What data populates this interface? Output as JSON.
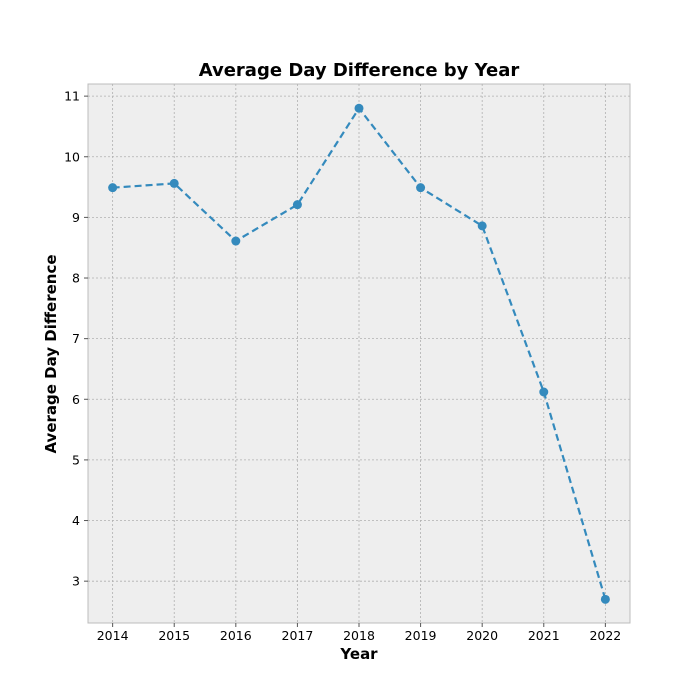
{
  "chart_data": {
    "type": "line",
    "title": "Average Day Difference by Year",
    "xlabel": "Year",
    "ylabel": "Average Day Difference",
    "x": [
      2014,
      2015,
      2016,
      2017,
      2018,
      2019,
      2020,
      2021,
      2022
    ],
    "series": [
      {
        "name": "",
        "values": [
          9.49,
          9.56,
          8.61,
          9.21,
          10.8,
          9.49,
          8.86,
          6.12,
          2.7
        ],
        "color": "#348abd",
        "line_style": "dashed",
        "marker": "circle"
      }
    ],
    "xlim": [
      2013.6,
      2022.4
    ],
    "ylim": [
      2.31,
      11.2
    ],
    "x_ticks": [
      "2014",
      "2015",
      "2016",
      "2017",
      "2018",
      "2019",
      "2020",
      "2021",
      "2022"
    ],
    "y_ticks": [
      "3",
      "4",
      "5",
      "6",
      "7",
      "8",
      "9",
      "10",
      "11"
    ],
    "grid": true,
    "grid_style": "dotted",
    "plot_background": "#eeeeee",
    "plot_border_color": "#bcbcbc",
    "grid_color": "#b0b0b0"
  }
}
